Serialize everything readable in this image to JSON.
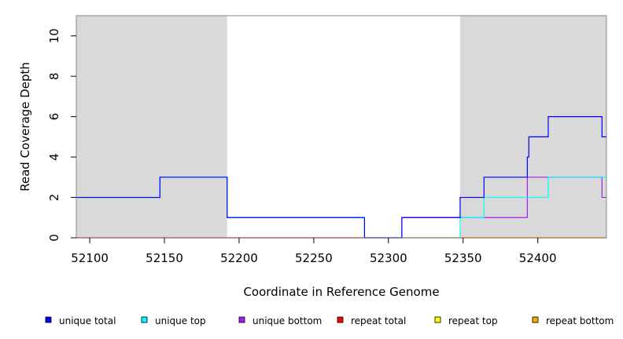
{
  "chart_data": {
    "type": "line",
    "step": true,
    "title": "",
    "xlabel": "Coordinate in Reference Genome",
    "ylabel": "Read Coverage Depth",
    "xlim": [
      52091,
      52446
    ],
    "ylim": [
      0,
      11
    ],
    "xticks": [
      52100,
      52150,
      52200,
      52250,
      52300,
      52350,
      52400
    ],
    "yticks": [
      0,
      2,
      4,
      6,
      8,
      10
    ],
    "shaded_regions": [
      {
        "x0": 52091,
        "x1": 52192,
        "color": "#d9d9d9"
      },
      {
        "x0": 52348,
        "x1": 52446,
        "color": "#d9d9d9"
      }
    ],
    "series": [
      {
        "name": "unique total",
        "color": "#0000ff",
        "x": [
          52091,
          52147,
          52192,
          52284,
          52309,
          52348,
          52364,
          52393,
          52394,
          52407,
          52443,
          52446
        ],
        "y": [
          2,
          3,
          1,
          0,
          1,
          2,
          3,
          4,
          5,
          6,
          5,
          5
        ]
      },
      {
        "name": "unique top",
        "color": "#00ffff",
        "x": [
          52091,
          52147,
          52192,
          52284,
          52348,
          52364,
          52407,
          52446
        ],
        "y": [
          2,
          3,
          1,
          0,
          1,
          2,
          3,
          3
        ]
      },
      {
        "name": "unique bottom",
        "color": "#a020f0",
        "x": [
          52091,
          52309,
          52393,
          52443,
          52446
        ],
        "y": [
          0,
          1,
          3,
          2,
          2
        ]
      },
      {
        "name": "repeat total",
        "color": "#ff0000",
        "x": [
          52091,
          52446
        ],
        "y": [
          0,
          0
        ]
      },
      {
        "name": "repeat top",
        "color": "#ffff00",
        "x": [
          52091,
          52446
        ],
        "y": [
          0,
          0
        ]
      },
      {
        "name": "repeat bottom",
        "color": "#ffa500",
        "x": [
          52348,
          52446
        ],
        "y": [
          0,
          0
        ]
      }
    ],
    "legend_position": "bottom",
    "grid": false
  }
}
